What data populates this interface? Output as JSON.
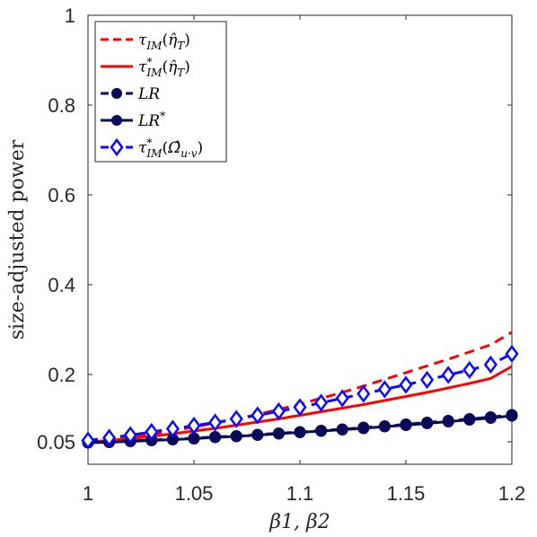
{
  "chart_data": {
    "type": "line",
    "title": "",
    "xlabel": "β1, β2",
    "ylabel": "size-adjusted power",
    "xlim": [
      1,
      1.2
    ],
    "ylim": [
      0,
      1
    ],
    "xticks": [
      1,
      1.05,
      1.1,
      1.15,
      1.2
    ],
    "xtick_labels": [
      "1",
      "1.05",
      "1.1",
      "1.15",
      "1.2"
    ],
    "yticks": [
      0.05,
      0.2,
      0.4,
      0.6,
      0.8,
      1
    ],
    "ytick_labels": [
      "0.05",
      "0.2",
      "0.4",
      "0.6",
      "0.8",
      "1"
    ],
    "grid": false,
    "legend_position": "top-left",
    "x": [
      1,
      1.01,
      1.02,
      1.03,
      1.04,
      1.05,
      1.06,
      1.07,
      1.08,
      1.09,
      1.1,
      1.11,
      1.12,
      1.13,
      1.14,
      1.15,
      1.16,
      1.17,
      1.18,
      1.19,
      1.2
    ],
    "series": [
      {
        "name": "τIM(η̂T)",
        "color": "#ff0000",
        "style": "dashed",
        "marker": "none",
        "values": [
          0.05,
          0.055,
          0.06,
          0.067,
          0.075,
          0.083,
          0.092,
          0.101,
          0.111,
          0.122,
          0.134,
          0.147,
          0.16,
          0.174,
          0.189,
          0.204,
          0.219,
          0.234,
          0.25,
          0.266,
          0.294
        ]
      },
      {
        "name": "τ*IM(η̂T)",
        "color": "#ff0000",
        "style": "solid",
        "marker": "none",
        "values": [
          0.05,
          0.053,
          0.057,
          0.062,
          0.068,
          0.074,
          0.08,
          0.087,
          0.094,
          0.101,
          0.109,
          0.117,
          0.125,
          0.133,
          0.142,
          0.151,
          0.16,
          0.17,
          0.18,
          0.191,
          0.218
        ]
      },
      {
        "name": "LR",
        "color": "#0a0a5a",
        "style": "dashed",
        "marker": "circle",
        "values": [
          0.049,
          0.05,
          0.052,
          0.054,
          0.056,
          0.058,
          0.061,
          0.063,
          0.066,
          0.069,
          0.072,
          0.075,
          0.078,
          0.082,
          0.085,
          0.089,
          0.093,
          0.097,
          0.101,
          0.105,
          0.11
        ]
      },
      {
        "name": "LR*",
        "color": "#0a0a5a",
        "style": "solid",
        "marker": "circle",
        "values": [
          0.048,
          0.049,
          0.051,
          0.053,
          0.055,
          0.057,
          0.06,
          0.062,
          0.065,
          0.068,
          0.071,
          0.074,
          0.077,
          0.08,
          0.084,
          0.087,
          0.091,
          0.095,
          0.099,
          0.103,
          0.108
        ]
      },
      {
        "name": "τ*IM(Ω̂u·v)",
        "color": "#0a0aff",
        "style": "dashed",
        "marker": "diamond",
        "values": [
          0.053,
          0.059,
          0.065,
          0.072,
          0.079,
          0.086,
          0.093,
          0.101,
          0.109,
          0.118,
          0.127,
          0.137,
          0.147,
          0.157,
          0.167,
          0.177,
          0.188,
          0.199,
          0.21,
          0.222,
          0.246
        ]
      }
    ]
  }
}
